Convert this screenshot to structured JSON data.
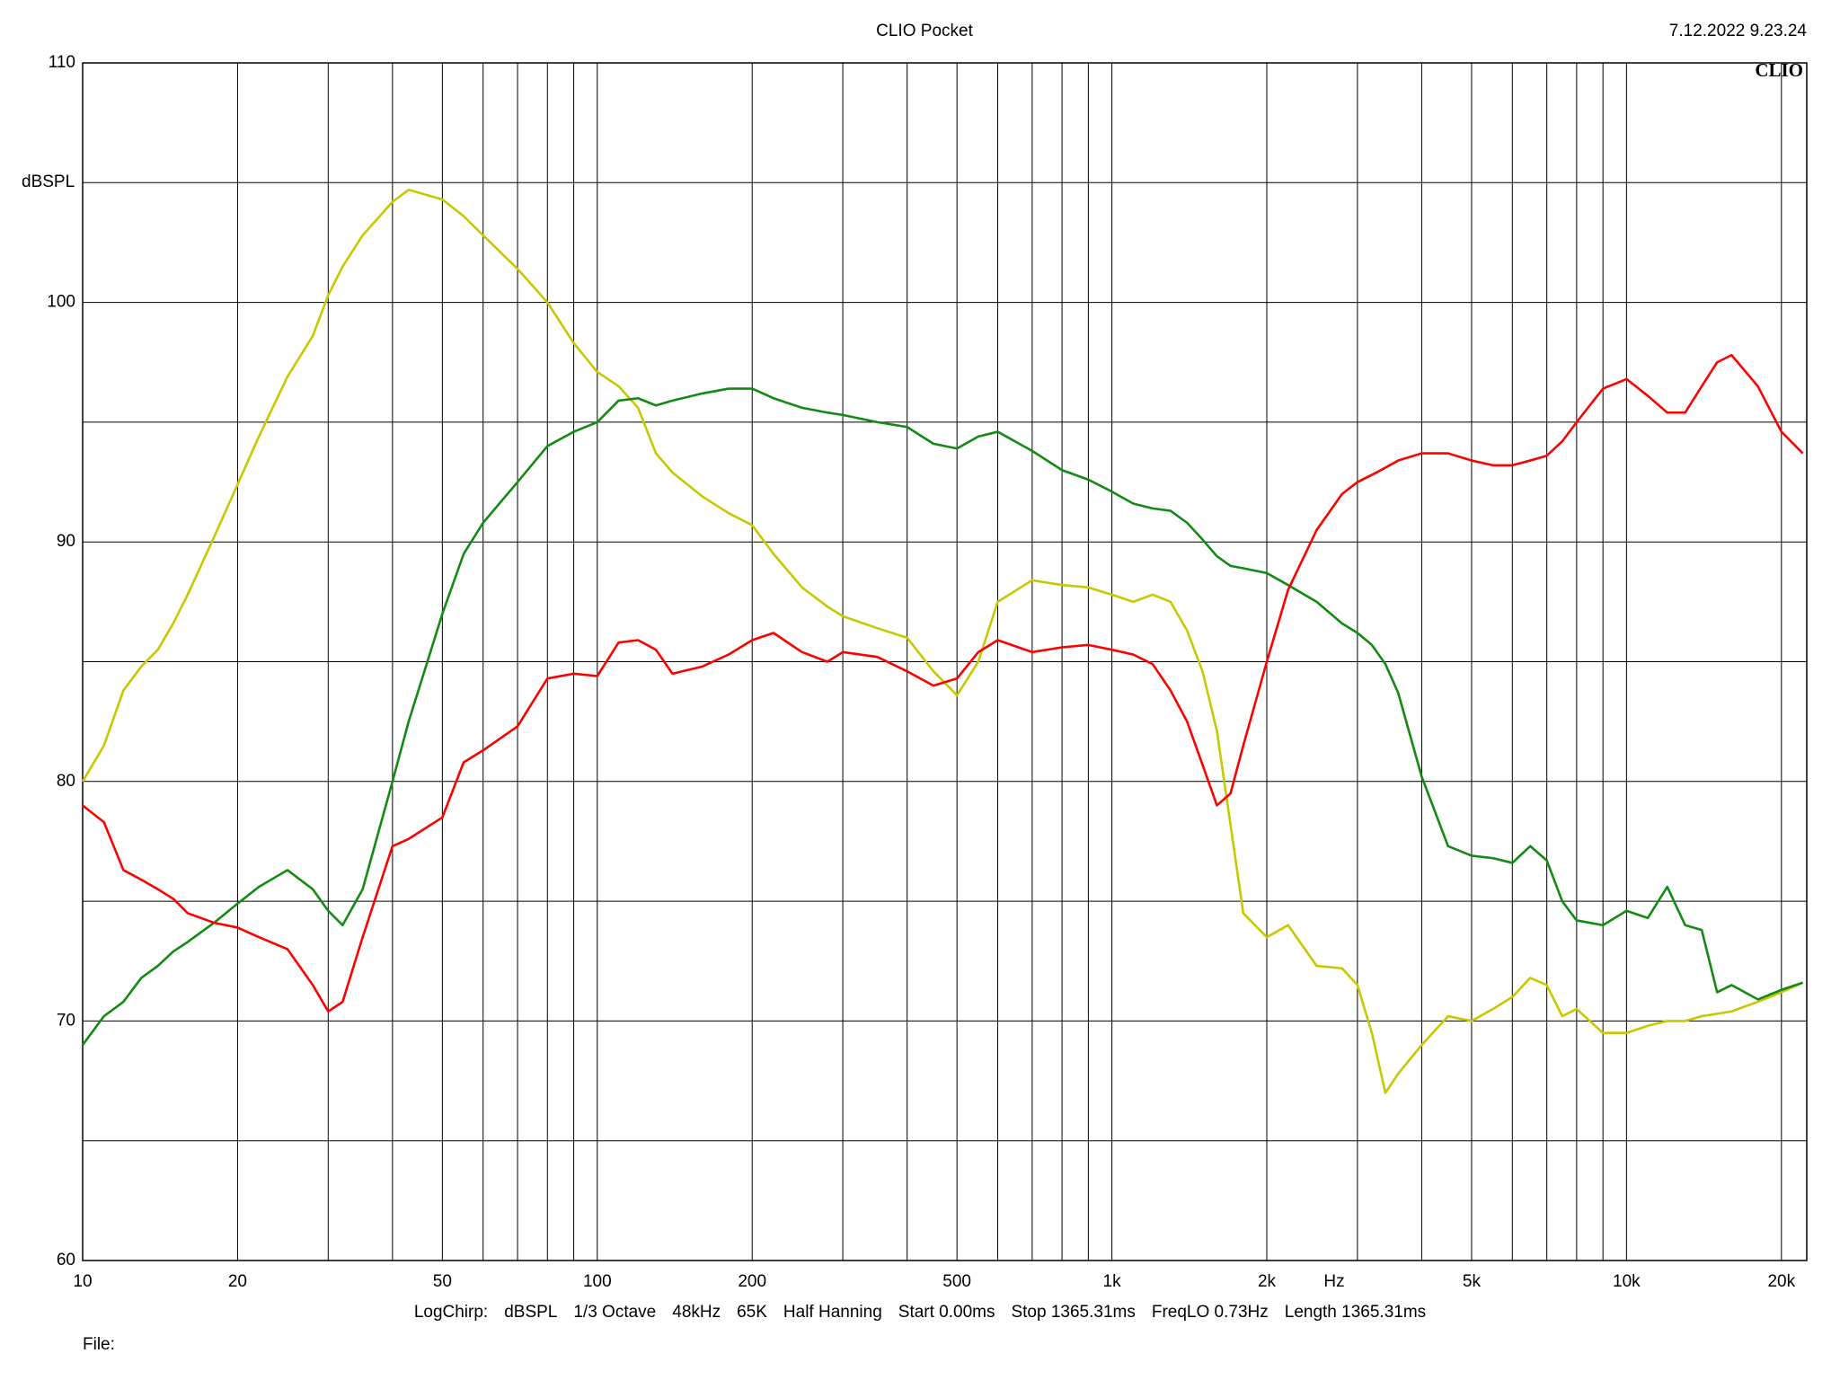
{
  "chart_data": {
    "type": "line",
    "title": "CLIO Pocket",
    "timestamp": "7.12.2022 9.23.24",
    "logo": "CLIO",
    "x_unit": "Hz",
    "y_unit": "dBSPL",
    "footer": [
      "LogChirp:",
      "dBSPL",
      "1/3 Octave",
      "48kHz",
      "65K",
      "Half Hanning",
      "Start 0.00ms",
      "Stop 1365.31ms",
      "FreqLO 0.73Hz",
      "Length 1365.31ms"
    ],
    "file_label": "File:",
    "xscale": "log",
    "grid": true,
    "xlim": [
      10,
      22400
    ],
    "ylim": [
      60,
      110
    ],
    "xticks": [
      10,
      20,
      50,
      100,
      200,
      500,
      {
        "value": 1000,
        "label": "1k"
      },
      {
        "value": 2000,
        "label": "2k"
      },
      {
        "value": 5000,
        "label": "5k"
      },
      {
        "value": 10000,
        "label": "10k"
      },
      {
        "value": 20000,
        "label": "20k"
      }
    ],
    "yticks": [
      60,
      70,
      80,
      90,
      100,
      110
    ],
    "x_grid": [
      30,
      40,
      60,
      70,
      80,
      90,
      300,
      400,
      600,
      700,
      800,
      900,
      3000,
      4000,
      6000,
      7000,
      8000,
      9000
    ],
    "y_grid": [
      65,
      75,
      85,
      95,
      105
    ],
    "x": [
      10,
      11,
      12,
      13,
      14,
      15,
      16,
      18,
      20,
      22,
      25,
      28,
      30,
      32,
      35,
      40,
      43,
      50,
      55,
      60,
      70,
      80,
      90,
      100,
      110,
      120,
      130,
      140,
      160,
      180,
      200,
      220,
      250,
      280,
      300,
      350,
      400,
      450,
      500,
      550,
      600,
      700,
      800,
      900,
      1000,
      1100,
      1200,
      1300,
      1400,
      1500,
      1600,
      1700,
      1800,
      2000,
      2200,
      2500,
      2800,
      3000,
      3200,
      3400,
      3600,
      4000,
      4500,
      5000,
      5500,
      6000,
      6500,
      7000,
      7500,
      8000,
      9000,
      10000,
      11000,
      12000,
      13000,
      14000,
      15000,
      16000,
      18000,
      20000,
      22000
    ],
    "series": [
      {
        "color": "#c8c800",
        "values": [
          80,
          81.5,
          83.8,
          84.8,
          85.5,
          86.6,
          87.8,
          90.2,
          92.4,
          94.4,
          96.9,
          98.6,
          100.3,
          101.5,
          102.8,
          104.2,
          104.7,
          104.3,
          103.6,
          102.8,
          101.4,
          100,
          98.3,
          97.1,
          96.5,
          95.6,
          93.7,
          92.9,
          91.9,
          91.2,
          90.7,
          89.5,
          88.1,
          87.3,
          86.9,
          86.4,
          86,
          84.6,
          83.6,
          85,
          87.5,
          88.4,
          88.2,
          88.1,
          87.8,
          87.5,
          87.8,
          87.5,
          86.3,
          84.6,
          82.1,
          78.2,
          74.5,
          73.5,
          74,
          72.3,
          72.2,
          71.5,
          69.5,
          67,
          67.8,
          69,
          70.2,
          70,
          70.5,
          71,
          71.8,
          71.5,
          70.2,
          70.5,
          69.5,
          69.5,
          69.8,
          70,
          70,
          70.2,
          70.3,
          70.4,
          70.8,
          71.2,
          71.6
        ]
      },
      {
        "color": "#138a13",
        "values": [
          69,
          70.2,
          70.8,
          71.8,
          72.3,
          72.9,
          73.3,
          74.1,
          74.9,
          75.6,
          76.3,
          75.5,
          74.6,
          74,
          75.5,
          80,
          82.5,
          87,
          89.5,
          90.8,
          92.5,
          94,
          94.6,
          95,
          95.9,
          96,
          95.7,
          95.9,
          96.2,
          96.4,
          96.4,
          96,
          95.6,
          95.4,
          95.3,
          95,
          94.8,
          94.1,
          93.9,
          94.4,
          94.6,
          93.8,
          93,
          92.6,
          92.1,
          91.6,
          91.4,
          91.3,
          90.8,
          90.1,
          89.4,
          89,
          88.9,
          88.7,
          88.2,
          87.5,
          86.6,
          86.2,
          85.7,
          84.9,
          83.7,
          80.2,
          77.3,
          76.9,
          76.8,
          76.6,
          77.3,
          76.7,
          75,
          74.2,
          74,
          74.6,
          74.3,
          75.6,
          74,
          73.8,
          71.2,
          71.5,
          70.9,
          71.3,
          71.6
        ]
      },
      {
        "color": "#ff0000",
        "values": [
          79,
          78.3,
          76.3,
          75.9,
          75.5,
          75.1,
          74.5,
          74.1,
          73.9,
          73.5,
          73,
          71.5,
          70.4,
          70.8,
          73.5,
          77.3,
          77.6,
          78.5,
          80.8,
          81.3,
          82.3,
          84.3,
          84.5,
          84.4,
          85.8,
          85.9,
          85.5,
          84.5,
          84.8,
          85.3,
          85.9,
          86.2,
          85.4,
          85,
          85.4,
          85.2,
          84.6,
          84,
          84.3,
          85.4,
          85.9,
          85.4,
          85.6,
          85.7,
          85.5,
          85.3,
          84.9,
          83.8,
          82.5,
          80.7,
          79,
          79.5,
          81.5,
          85,
          88,
          90.5,
          92,
          92.5,
          92.8,
          93.1,
          93.4,
          93.7,
          93.7,
          93.4,
          93.2,
          93.2,
          93.4,
          93.6,
          94.2,
          95,
          96.4,
          96.8,
          96.1,
          95.4,
          95.4,
          96.5,
          97.5,
          97.8,
          96.5,
          94.6,
          93.7
        ]
      }
    ]
  }
}
